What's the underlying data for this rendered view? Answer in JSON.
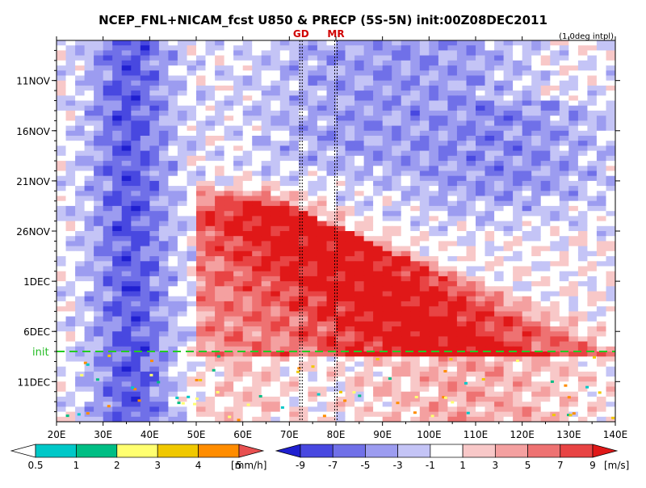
{
  "chart_data": {
    "type": "heatmap",
    "title": "NCEP_FNL+NICAM_fcst U850 & PRECP (5S-5N) init:00Z08DEC2011",
    "subtitle": "(1.0deg intpl)",
    "x_ticks": [
      "20E",
      "30E",
      "40E",
      "50E",
      "60E",
      "70E",
      "80E",
      "90E",
      "100E",
      "110E",
      "120E",
      "130E",
      "140E"
    ],
    "xlim": [
      20,
      140
    ],
    "y_ticks": [
      "11NOV",
      "16NOV",
      "21NOV",
      "26NOV",
      "1DEC",
      "6DEC",
      "11DEC"
    ],
    "y_tick_days": [
      11,
      16,
      21,
      26,
      31,
      36,
      41
    ],
    "ylim_days": [
      7,
      45
    ],
    "init_label": "init",
    "init_day": 38,
    "markers": [
      {
        "label": "GD",
        "lon": 72.5
      },
      {
        "label": "MR",
        "lon": 80
      }
    ],
    "u850_levels": [
      -9,
      -7,
      -5,
      -3,
      -1,
      1,
      3,
      5,
      7,
      9
    ],
    "u850_colors": [
      "#1f1fd0",
      "#4848e0",
      "#7070e8",
      "#9c9cf0",
      "#c4c4f6",
      "#ffffff",
      "#f8c8c8",
      "#f4a0a0",
      "#ee7272",
      "#e84444",
      "#e01818"
    ],
    "precip_levels": [
      0.5,
      1,
      2,
      3,
      4,
      5
    ],
    "precip_colors": [
      "#ffffff",
      "#00c8c8",
      "#00be84",
      "#ffff70",
      "#f0c800",
      "#ff8c00",
      "#e85050"
    ],
    "u850_features": [
      {
        "name": "westerly-burst",
        "lon_range": [
          50,
          135
        ],
        "day_range": [
          22,
          37
        ],
        "peak_ms": 11
      },
      {
        "name": "easterly-belt-west",
        "lon_range": [
          24,
          50
        ],
        "day_range": [
          7,
          45
        ],
        "peak_ms": -7
      },
      {
        "name": "easterly-region-east",
        "lon_range": [
          95,
          140
        ],
        "day_range": [
          7,
          27
        ],
        "peak_ms": -5
      }
    ],
    "legend_precip_unit": "[mm/h]",
    "legend_u_unit": "[m/s]",
    "precip_legend_ticks": [
      "0.5",
      "1",
      "2",
      "3",
      "4",
      "5"
    ],
    "u_legend_ticks": [
      "-9",
      "-7",
      "-5",
      "-3",
      "-1",
      "1",
      "3",
      "5",
      "7",
      "9"
    ]
  }
}
